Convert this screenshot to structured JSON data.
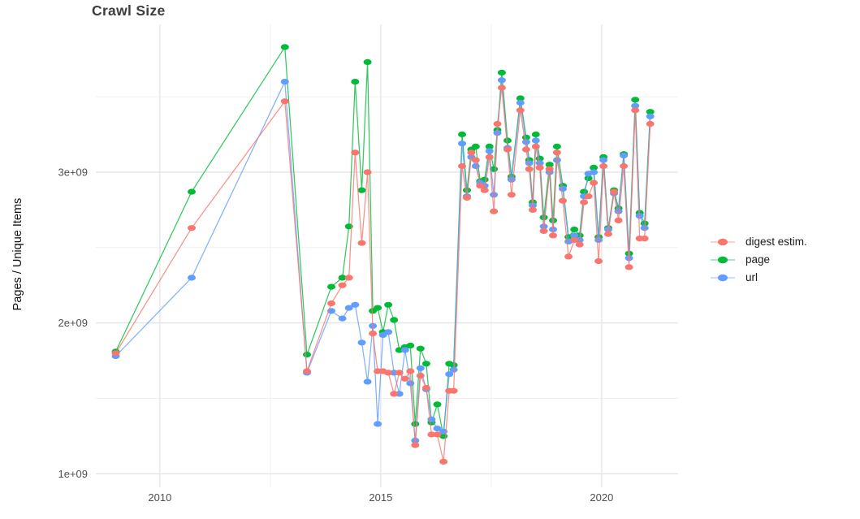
{
  "chart_data": {
    "type": "line",
    "title": "Crawl Size",
    "ylabel": "Pages / Unique Items",
    "xlabel": "",
    "value_unit": "count, values stored in billions (1e9)",
    "axes": {
      "xlim": [
        2008.55,
        2021.73
      ],
      "ylim_e9": [
        0.91,
        3.98
      ],
      "x_ticks": [
        {
          "label": "2010",
          "value": 2010
        },
        {
          "label": "2015",
          "value": 2015
        },
        {
          "label": "2020",
          "value": 2020
        }
      ],
      "y_ticks": [
        {
          "label": "1e+09",
          "value": 1
        },
        {
          "label": "2e+09",
          "value": 2
        },
        {
          "label": "3e+09",
          "value": 3
        }
      ],
      "x_minor": [
        2012.5,
        2017.5
      ],
      "y_minor": [
        1.5,
        2.5,
        3.5
      ],
      "grid": "major and minor light-gray gridlines on white, no axis lines, no tick marks"
    },
    "legend": {
      "position": "right",
      "items": [
        "digest estim.",
        "page",
        "url"
      ]
    },
    "x_years": [
      2009.0,
      2010.72,
      2012.83,
      2013.33,
      2013.88,
      2014.13,
      2014.28,
      2014.42,
      2014.57,
      2014.7,
      2014.82,
      2014.93,
      2015.05,
      2015.17,
      2015.3,
      2015.42,
      2015.55,
      2015.67,
      2015.78,
      2015.9,
      2016.03,
      2016.15,
      2016.28,
      2016.42,
      2016.55,
      2016.65,
      2016.84,
      2016.95,
      2017.05,
      2017.15,
      2017.25,
      2017.35,
      2017.46,
      2017.56,
      2017.64,
      2017.74,
      2017.87,
      2017.96,
      2018.16,
      2018.29,
      2018.36,
      2018.44,
      2018.51,
      2018.6,
      2018.69,
      2018.82,
      2018.9,
      2018.99,
      2019.12,
      2019.25,
      2019.38,
      2019.5,
      2019.6,
      2019.7,
      2019.82,
      2019.93,
      2020.04,
      2020.15,
      2020.28,
      2020.38,
      2020.5,
      2020.62,
      2020.76,
      2020.86,
      2020.97,
      2021.1
    ],
    "series": [
      {
        "name": "digest estim.",
        "color": "#F8766D",
        "values_e9": [
          1.8,
          2.63,
          3.47,
          1.68,
          2.13,
          2.25,
          2.3,
          3.13,
          2.53,
          3.0,
          1.93,
          1.68,
          1.68,
          1.67,
          1.53,
          1.67,
          1.63,
          1.68,
          1.19,
          1.65,
          1.57,
          1.26,
          1.26,
          1.08,
          1.55,
          1.55,
          3.04,
          2.83,
          3.13,
          3.08,
          2.91,
          2.88,
          3.1,
          2.74,
          3.32,
          3.56,
          3.15,
          2.85,
          3.41,
          3.15,
          3.02,
          2.75,
          3.17,
          3.03,
          2.61,
          3.02,
          2.58,
          3.13,
          2.81,
          2.44,
          2.55,
          2.52,
          2.8,
          2.84,
          2.93,
          2.41,
          3.04,
          2.59,
          2.87,
          2.68,
          3.04,
          2.37,
          3.41,
          2.56,
          2.56,
          3.32
        ]
      },
      {
        "name": "page",
        "color": "#00BA38",
        "values_e9": [
          1.81,
          2.87,
          3.83,
          1.79,
          2.24,
          2.3,
          2.64,
          3.6,
          2.88,
          3.73,
          2.08,
          2.1,
          1.94,
          2.12,
          2.02,
          1.82,
          1.84,
          1.85,
          1.33,
          1.83,
          1.73,
          1.34,
          1.46,
          1.25,
          1.73,
          1.72,
          3.25,
          2.88,
          3.15,
          3.17,
          2.94,
          2.95,
          3.17,
          3.02,
          3.28,
          3.66,
          3.21,
          2.97,
          3.49,
          3.23,
          3.08,
          2.8,
          3.25,
          3.09,
          2.7,
          3.05,
          2.68,
          3.17,
          2.91,
          2.57,
          2.62,
          2.58,
          2.87,
          2.96,
          3.03,
          2.57,
          3.1,
          2.63,
          2.88,
          2.76,
          3.12,
          2.46,
          3.48,
          2.73,
          2.66,
          3.4
        ]
      },
      {
        "name": "url",
        "color": "#619CFF",
        "values_e9": [
          1.78,
          2.3,
          3.6,
          1.67,
          2.08,
          2.03,
          2.1,
          2.12,
          1.87,
          1.61,
          1.98,
          1.33,
          1.92,
          1.94,
          1.67,
          1.53,
          1.82,
          1.6,
          1.22,
          1.7,
          1.56,
          1.36,
          1.3,
          1.28,
          1.66,
          1.69,
          3.19,
          2.84,
          3.1,
          3.04,
          2.93,
          2.91,
          3.14,
          2.85,
          3.26,
          3.61,
          3.16,
          2.95,
          3.46,
          3.2,
          3.06,
          2.78,
          3.21,
          3.06,
          2.64,
          3.0,
          2.62,
          3.08,
          2.89,
          2.54,
          2.58,
          2.55,
          2.84,
          2.99,
          3.0,
          2.55,
          3.08,
          2.62,
          2.86,
          2.74,
          3.11,
          2.43,
          3.44,
          2.71,
          2.63,
          3.37
        ]
      }
    ]
  }
}
